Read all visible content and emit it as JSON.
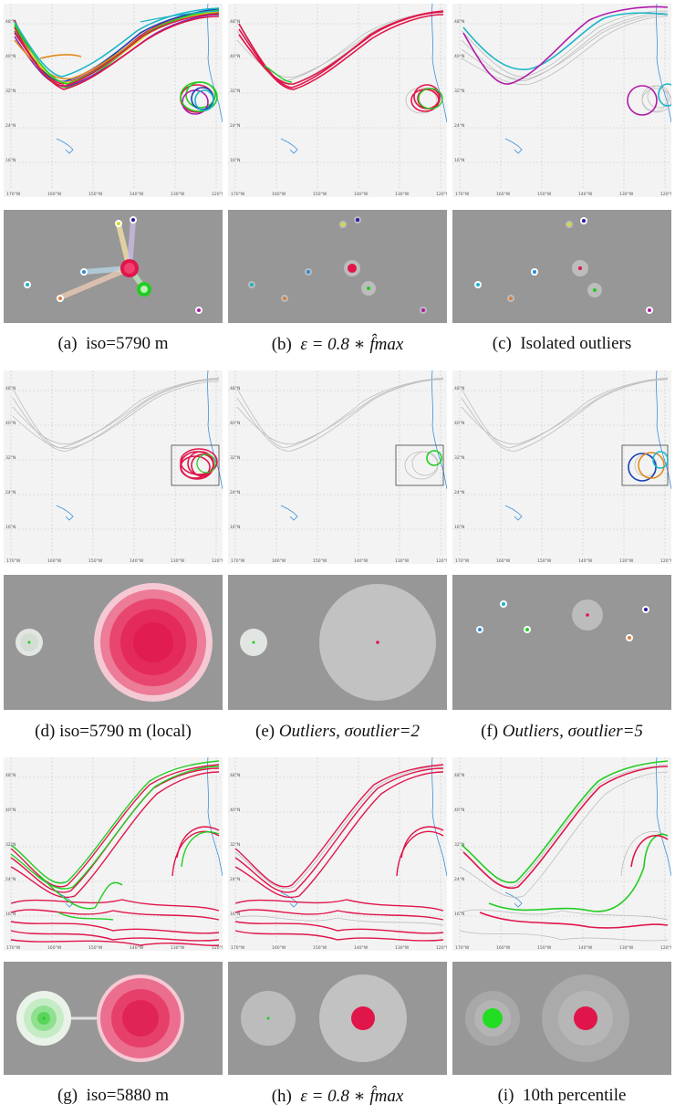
{
  "captions": [
    {
      "id": "a",
      "letter": "(a)",
      "text": "iso=5790 m"
    },
    {
      "id": "b",
      "letter": "(b)",
      "text": "ε = 0.8 ∗ f̂max"
    },
    {
      "id": "c",
      "letter": "(c)",
      "text": "Isolated outliers"
    },
    {
      "id": "d",
      "letter": "(d)",
      "text": "iso=5790 m (local)"
    },
    {
      "id": "e",
      "letter": "(e)",
      "text": "Outliers, σoutlier=2"
    },
    {
      "id": "f",
      "letter": "(f)",
      "text": "Outliers, σoutlier=5"
    },
    {
      "id": "g",
      "letter": "(g)",
      "text": "iso=5880 m"
    },
    {
      "id": "h",
      "letter": "(h)",
      "text": "ε = 0.8 ∗ f̂max"
    },
    {
      "id": "i",
      "letter": "(i)",
      "text": "10th percentile"
    }
  ],
  "map_axes": {
    "lat_ticks": [
      "48°N",
      "40°N",
      "32°N",
      "24°N",
      "16°N"
    ],
    "lon_ticks": [
      "170°W",
      "160°W",
      "150°W",
      "140°W",
      "130°W",
      "120°W"
    ]
  },
  "colors": {
    "red": "#e0154a",
    "green": "#22cc22",
    "gray_line": "#bdbdbd",
    "panel_bg": "#979797",
    "coast": "#3a8fd9"
  }
}
